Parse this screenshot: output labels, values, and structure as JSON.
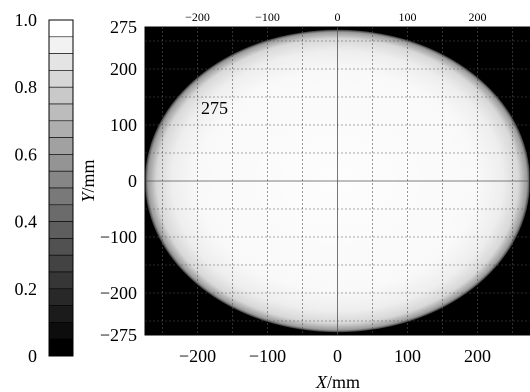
{
  "chart_data": {
    "type": "heatmap",
    "title": "",
    "xlabel": "X/mm",
    "ylabel": "Y/mm",
    "xlim": [
      -275,
      275
    ],
    "ylim": [
      -275,
      275
    ],
    "x_ticks_bottom": [
      -200,
      -100,
      0,
      100,
      200
    ],
    "x_ticks_top": [
      -200,
      -100,
      0,
      100,
      200
    ],
    "y_ticks": [
      275,
      200,
      100,
      0,
      -100,
      -200,
      -275
    ],
    "grid": true,
    "grid_spacing": 50,
    "annotation": {
      "text": "275",
      "x": -195,
      "y": 120
    },
    "pattern": {
      "shape": "ellipse",
      "center": [
        0,
        0
      ],
      "semi_axis_x": 275,
      "semi_axis_y": 270,
      "inner_value": 0.99,
      "edge_value": 0.6,
      "outside_value": 0.0
    },
    "colorbar": {
      "range": [
        0,
        1
      ],
      "tick_labels": [
        "1.0",
        "0.8",
        "0.6",
        "0.4",
        "0.2",
        "0"
      ],
      "tick_values": [
        1.0,
        0.8,
        0.6,
        0.4,
        0.2,
        0.0
      ],
      "levels": 20,
      "colormap": "gray"
    }
  }
}
